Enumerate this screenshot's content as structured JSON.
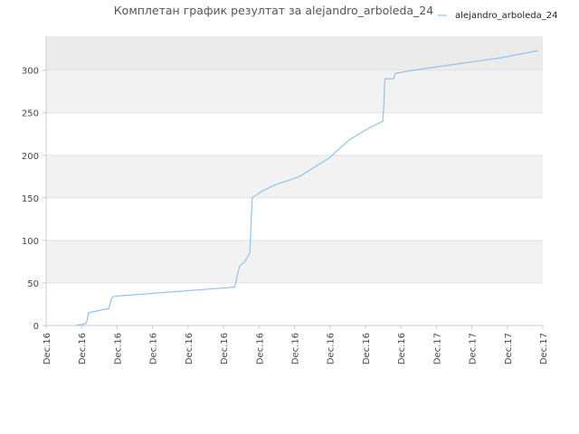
{
  "chart_data": {
    "type": "line",
    "title": "Комплетан график резултат за alejandro_arboleda_24",
    "xlabel": "",
    "ylabel": "",
    "ylim": [
      0,
      340
    ],
    "y_ticks": [
      0,
      50,
      100,
      150,
      200,
      250,
      300
    ],
    "x_tick_labels": [
      "Dec.16",
      "Dec.16",
      "Dec.16",
      "Dec.16",
      "Dec.16",
      "Dec.16",
      "Dec.16",
      "Dec.16",
      "Dec.16",
      "Dec.16",
      "Dec.16",
      "Dec.17",
      "Dec.17",
      "Dec.17",
      "Dec.17"
    ],
    "x_tick_labels_note": "",
    "grid": true,
    "background_bands": true,
    "legend": {
      "position": "top-right"
    },
    "series": [
      {
        "name": "alejandro_arboleda_24",
        "color": "#90c3ee",
        "x": [
          0.06,
          0.08,
          0.082,
          0.085,
          0.126,
          0.132,
          0.135,
          0.15,
          0.38,
          0.385,
          0.39,
          0.4,
          0.405,
          0.41,
          0.415,
          0.435,
          0.46,
          0.51,
          0.57,
          0.61,
          0.65,
          0.678,
          0.68,
          0.682,
          0.685,
          0.7,
          0.703,
          0.71,
          0.74,
          0.8,
          0.86,
          0.92,
          0.99
        ],
        "y": [
          0,
          2,
          5,
          15,
          20,
          32,
          34,
          35,
          45,
          60,
          70,
          75,
          80,
          85,
          150,
          158,
          165,
          175,
          197,
          218,
          232,
          240,
          260,
          290,
          290,
          290,
          296,
          297,
          300,
          305,
          310,
          315,
          323
        ]
      }
    ]
  }
}
